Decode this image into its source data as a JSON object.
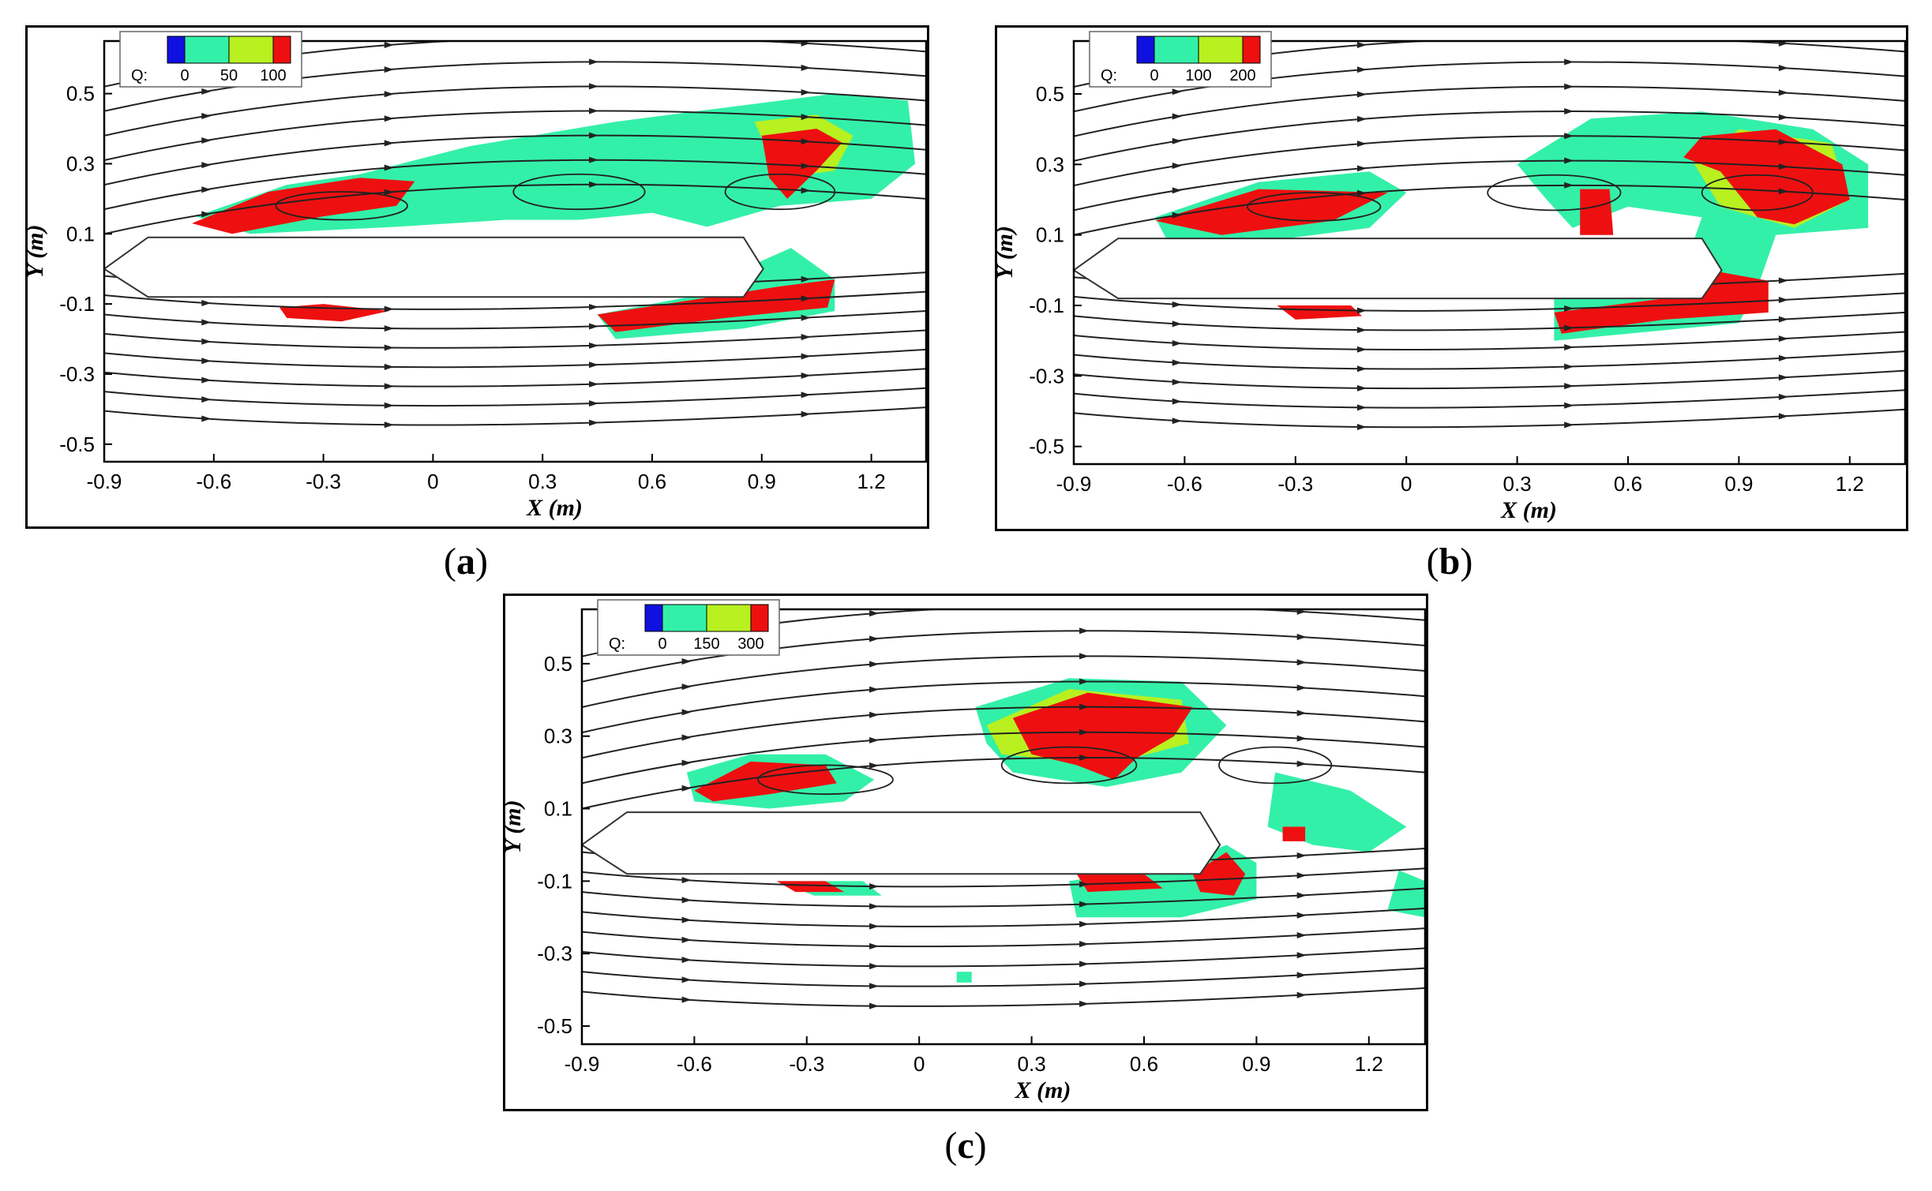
{
  "figure": {
    "panels": [
      {
        "caption_open": "(",
        "caption_letter": "a",
        "caption_close": ")",
        "legend": {
          "prefix": "Q:",
          "ticks": [
            "0",
            "50",
            "100"
          ]
        }
      },
      {
        "caption_open": "(",
        "caption_letter": "b",
        "caption_close": ")",
        "legend": {
          "prefix": "Q:",
          "ticks": [
            "0",
            "100",
            "200"
          ]
        }
      },
      {
        "caption_open": "(",
        "caption_letter": "c",
        "caption_close": ")",
        "legend": {
          "prefix": "Q:",
          "ticks": [
            "0",
            "150",
            "300"
          ]
        }
      }
    ]
  },
  "chart_data": [
    {
      "type": "heatmap",
      "panel": "a",
      "xlabel": "X (m)",
      "ylabel": "Y (m)",
      "xlim": [
        -0.9,
        1.35
      ],
      "ylim": [
        -0.55,
        0.65
      ],
      "xticks": [
        "-0.9",
        "-0.6",
        "-0.3",
        "0",
        "0.3",
        "0.6",
        "0.9",
        "1.2"
      ],
      "yticks": [
        "0.5",
        "0.3",
        "0.1",
        "-0.1",
        "-0.3",
        "-0.5"
      ],
      "colorbar": {
        "label": "Q",
        "ticks": [
          0,
          50,
          100
        ],
        "colors": [
          "#1010e0",
          "#33f0a8",
          "#b8f020",
          "#ee1010"
        ]
      },
      "body": {
        "x_start": -0.9,
        "x_end": 0.85,
        "y_top": 0.09,
        "y_bottom": -0.08
      },
      "regions": [
        {
          "level": "low",
          "points": [
            [
              -0.65,
              0.15
            ],
            [
              -0.4,
              0.24
            ],
            [
              -0.2,
              0.27
            ],
            [
              0.1,
              0.35
            ],
            [
              0.5,
              0.42
            ],
            [
              0.8,
              0.46
            ],
            [
              1.1,
              0.5
            ],
            [
              1.3,
              0.48
            ],
            [
              1.32,
              0.3
            ],
            [
              1.2,
              0.2
            ],
            [
              0.95,
              0.18
            ],
            [
              0.75,
              0.12
            ],
            [
              0.6,
              0.16
            ],
            [
              0.4,
              0.14
            ],
            [
              0.2,
              0.14
            ],
            [
              -0.1,
              0.12
            ],
            [
              -0.5,
              0.1
            ]
          ]
        },
        {
          "level": "low",
          "points": [
            [
              0.45,
              -0.13
            ],
            [
              0.7,
              -0.08
            ],
            [
              0.85,
              0.0
            ],
            [
              0.98,
              0.06
            ],
            [
              1.1,
              -0.03
            ],
            [
              1.1,
              -0.12
            ],
            [
              0.85,
              -0.17
            ],
            [
              0.5,
              -0.2
            ]
          ]
        },
        {
          "level": "mid",
          "points": [
            [
              0.88,
              0.42
            ],
            [
              1.05,
              0.44
            ],
            [
              1.15,
              0.38
            ],
            [
              1.1,
              0.28
            ],
            [
              0.95,
              0.26
            ]
          ]
        },
        {
          "level": "high",
          "points": [
            [
              -0.66,
              0.13
            ],
            [
              -0.45,
              0.22
            ],
            [
              -0.2,
              0.26
            ],
            [
              -0.05,
              0.25
            ],
            [
              -0.1,
              0.18
            ],
            [
              -0.3,
              0.15
            ],
            [
              -0.55,
              0.1
            ]
          ]
        },
        {
          "level": "high",
          "points": [
            [
              0.9,
              0.38
            ],
            [
              1.05,
              0.4
            ],
            [
              1.12,
              0.36
            ],
            [
              1.05,
              0.28
            ],
            [
              0.97,
              0.2
            ],
            [
              0.92,
              0.26
            ]
          ]
        },
        {
          "level": "high",
          "points": [
            [
              0.45,
              -0.13
            ],
            [
              0.7,
              -0.09
            ],
            [
              0.95,
              -0.05
            ],
            [
              1.1,
              -0.03
            ],
            [
              1.08,
              -0.11
            ],
            [
              0.8,
              -0.14
            ],
            [
              0.5,
              -0.18
            ]
          ]
        },
        {
          "level": "high",
          "points": [
            [
              -0.42,
              -0.11
            ],
            [
              -0.3,
              -0.1
            ],
            [
              -0.12,
              -0.12
            ],
            [
              -0.25,
              -0.15
            ],
            [
              -0.4,
              -0.14
            ]
          ]
        }
      ]
    },
    {
      "type": "heatmap",
      "panel": "b",
      "xlabel": "X (m)",
      "ylabel": "Y (m)",
      "xlim": [
        -0.9,
        1.35
      ],
      "ylim": [
        -0.55,
        0.65
      ],
      "xticks": [
        "-0.9",
        "-0.6",
        "-0.3",
        "0",
        "0.3",
        "0.6",
        "0.9",
        "1.2"
      ],
      "yticks": [
        "0.5",
        "0.3",
        "0.1",
        "-0.1",
        "-0.3",
        "-0.5"
      ],
      "colorbar": {
        "label": "Q",
        "ticks": [
          0,
          100,
          200
        ],
        "colors": [
          "#1010e0",
          "#33f0a8",
          "#b8f020",
          "#ee1010"
        ]
      },
      "body": {
        "x_start": -0.9,
        "x_end": 0.8,
        "y_top": 0.09,
        "y_bottom": -0.08
      },
      "regions": [
        {
          "level": "low",
          "points": [
            [
              -0.68,
              0.15
            ],
            [
              -0.4,
              0.25
            ],
            [
              -0.1,
              0.28
            ],
            [
              0.0,
              0.22
            ],
            [
              -0.1,
              0.12
            ],
            [
              -0.4,
              0.08
            ],
            [
              -0.65,
              0.09
            ]
          ]
        },
        {
          "level": "low",
          "points": [
            [
              0.3,
              0.3
            ],
            [
              0.5,
              0.43
            ],
            [
              0.8,
              0.45
            ],
            [
              1.1,
              0.4
            ],
            [
              1.25,
              0.3
            ],
            [
              1.25,
              0.12
            ],
            [
              1.0,
              0.1
            ],
            [
              0.95,
              -0.05
            ],
            [
              0.9,
              -0.15
            ],
            [
              0.6,
              -0.18
            ],
            [
              0.4,
              -0.2
            ],
            [
              0.4,
              -0.08
            ],
            [
              0.6,
              -0.08
            ],
            [
              0.75,
              0.0
            ],
            [
              0.8,
              0.15
            ],
            [
              0.6,
              0.18
            ],
            [
              0.45,
              0.12
            ],
            [
              0.38,
              0.2
            ]
          ]
        },
        {
          "level": "mid",
          "points": [
            [
              0.9,
              0.4
            ],
            [
              1.15,
              0.36
            ],
            [
              1.2,
              0.2
            ],
            [
              1.05,
              0.12
            ],
            [
              0.85,
              0.18
            ],
            [
              0.78,
              0.3
            ]
          ]
        },
        {
          "level": "high",
          "points": [
            [
              0.8,
              0.38
            ],
            [
              1.0,
              0.4
            ],
            [
              1.18,
              0.3
            ],
            [
              1.2,
              0.2
            ],
            [
              1.05,
              0.13
            ],
            [
              0.95,
              0.15
            ],
            [
              0.85,
              0.28
            ],
            [
              0.75,
              0.32
            ]
          ]
        },
        {
          "level": "high",
          "points": [
            [
              0.47,
              0.23
            ],
            [
              0.55,
              0.23
            ],
            [
              0.56,
              0.1
            ],
            [
              0.47,
              0.1
            ]
          ]
        },
        {
          "level": "high",
          "points": [
            [
              -0.68,
              0.14
            ],
            [
              -0.4,
              0.23
            ],
            [
              -0.05,
              0.22
            ],
            [
              -0.2,
              0.14
            ],
            [
              -0.5,
              0.1
            ]
          ]
        },
        {
          "level": "high",
          "points": [
            [
              0.4,
              -0.12
            ],
            [
              0.7,
              -0.08
            ],
            [
              0.82,
              0.0
            ],
            [
              0.98,
              -0.03
            ],
            [
              0.98,
              -0.12
            ],
            [
              0.7,
              -0.14
            ],
            [
              0.42,
              -0.18
            ]
          ]
        },
        {
          "level": "high",
          "points": [
            [
              -0.35,
              -0.1
            ],
            [
              -0.15,
              -0.1
            ],
            [
              -0.12,
              -0.13
            ],
            [
              -0.3,
              -0.14
            ]
          ]
        }
      ]
    },
    {
      "type": "heatmap",
      "panel": "c",
      "xlabel": "X (m)",
      "ylabel": "Y (m)",
      "xlim": [
        -0.9,
        1.35
      ],
      "ylim": [
        -0.55,
        0.65
      ],
      "xticks": [
        "-0.9",
        "-0.6",
        "-0.3",
        "0",
        "0.3",
        "0.6",
        "0.9",
        "1.2"
      ],
      "yticks": [
        "0.5",
        "0.3",
        "0.1",
        "-0.1",
        "-0.3",
        "-0.5"
      ],
      "colorbar": {
        "label": "Q",
        "ticks": [
          0,
          150,
          300
        ],
        "colors": [
          "#1010e0",
          "#33f0a8",
          "#b8f020",
          "#ee1010"
        ]
      },
      "body": {
        "x_start": -0.9,
        "x_end": 0.75,
        "y_top": 0.09,
        "y_bottom": -0.08
      },
      "regions": [
        {
          "level": "low",
          "points": [
            [
              -0.62,
              0.2
            ],
            [
              -0.45,
              0.25
            ],
            [
              -0.25,
              0.25
            ],
            [
              -0.12,
              0.18
            ],
            [
              -0.2,
              0.12
            ],
            [
              -0.4,
              0.1
            ],
            [
              -0.6,
              0.12
            ]
          ]
        },
        {
          "level": "low",
          "points": [
            [
              0.15,
              0.38
            ],
            [
              0.4,
              0.46
            ],
            [
              0.7,
              0.45
            ],
            [
              0.82,
              0.33
            ],
            [
              0.7,
              0.2
            ],
            [
              0.5,
              0.16
            ],
            [
              0.25,
              0.2
            ],
            [
              0.18,
              0.28
            ]
          ]
        },
        {
          "level": "low",
          "points": [
            [
              0.4,
              -0.1
            ],
            [
              0.7,
              -0.05
            ],
            [
              0.82,
              0.0
            ],
            [
              0.9,
              -0.05
            ],
            [
              0.9,
              -0.15
            ],
            [
              0.7,
              -0.2
            ],
            [
              0.42,
              -0.2
            ]
          ]
        },
        {
          "level": "low",
          "points": [
            [
              0.95,
              0.2
            ],
            [
              1.15,
              0.15
            ],
            [
              1.3,
              0.05
            ],
            [
              1.2,
              -0.02
            ],
            [
              1.05,
              0.0
            ],
            [
              0.93,
              0.05
            ]
          ]
        },
        {
          "level": "low",
          "points": [
            [
              1.28,
              -0.07
            ],
            [
              1.35,
              -0.1
            ],
            [
              1.35,
              -0.2
            ],
            [
              1.25,
              -0.18
            ]
          ]
        },
        {
          "level": "low",
          "points": [
            [
              -0.38,
              -0.1
            ],
            [
              -0.15,
              -0.1
            ],
            [
              -0.1,
              -0.14
            ],
            [
              -0.28,
              -0.14
            ]
          ]
        },
        {
          "level": "mid",
          "points": [
            [
              0.18,
              0.33
            ],
            [
              0.4,
              0.43
            ],
            [
              0.7,
              0.4
            ],
            [
              0.72,
              0.28
            ],
            [
              0.5,
              0.22
            ],
            [
              0.22,
              0.25
            ]
          ]
        },
        {
          "level": "high",
          "points": [
            [
              0.25,
              0.35
            ],
            [
              0.45,
              0.42
            ],
            [
              0.73,
              0.38
            ],
            [
              0.68,
              0.3
            ],
            [
              0.58,
              0.24
            ],
            [
              0.52,
              0.18
            ],
            [
              0.42,
              0.22
            ],
            [
              0.3,
              0.25
            ]
          ]
        },
        {
          "level": "high",
          "points": [
            [
              -0.6,
              0.15
            ],
            [
              -0.45,
              0.23
            ],
            [
              -0.25,
              0.22
            ],
            [
              -0.22,
              0.17
            ],
            [
              -0.4,
              0.14
            ],
            [
              -0.55,
              0.12
            ]
          ]
        },
        {
          "level": "high",
          "points": [
            [
              0.73,
              -0.08
            ],
            [
              0.82,
              -0.02
            ],
            [
              0.87,
              -0.08
            ],
            [
              0.84,
              -0.14
            ],
            [
              0.75,
              -0.13
            ]
          ]
        },
        {
          "level": "high",
          "points": [
            [
              0.42,
              -0.08
            ],
            [
              0.6,
              -0.08
            ],
            [
              0.65,
              -0.12
            ],
            [
              0.45,
              -0.13
            ]
          ]
        },
        {
          "level": "high",
          "points": [
            [
              -0.38,
              -0.1
            ],
            [
              -0.25,
              -0.1
            ],
            [
              -0.2,
              -0.13
            ],
            [
              -0.33,
              -0.13
            ]
          ]
        },
        {
          "level": "high",
          "points": [
            [
              0.97,
              0.05
            ],
            [
              1.03,
              0.05
            ],
            [
              1.03,
              0.01
            ],
            [
              0.97,
              0.01
            ]
          ]
        },
        {
          "level": "low",
          "points": [
            [
              0.1,
              -0.35
            ],
            [
              0.14,
              -0.35
            ],
            [
              0.14,
              -0.38
            ],
            [
              0.1,
              -0.38
            ]
          ]
        }
      ]
    }
  ]
}
